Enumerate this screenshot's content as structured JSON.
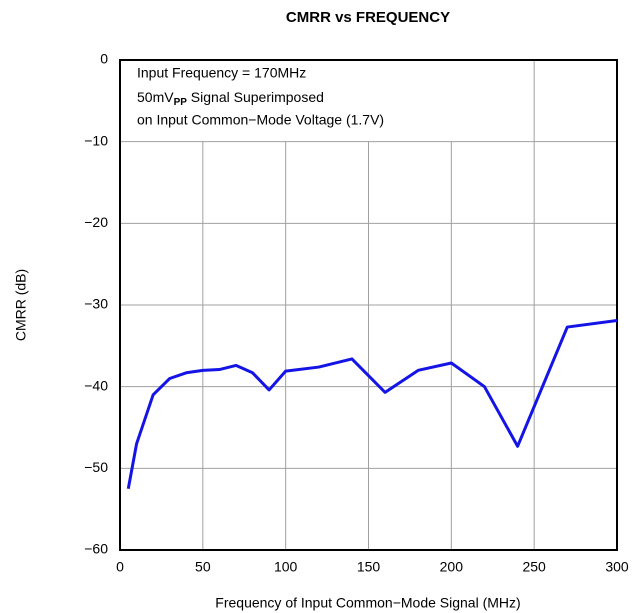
{
  "chart_data": {
    "type": "line",
    "title": "CMRR vs FREQUENCY",
    "xlabel": "Frequency of Input Common−Mode Signal (MHz)",
    "ylabel": "CMRR (dB)",
    "annotation": {
      "line1": "Input Frequency = 170MHz",
      "line2": {
        "main": "50mV",
        "sub": "PP",
        "rest": " Signal Superimposed"
      },
      "line3": "on Input Common−Mode Voltage (1.7V)"
    },
    "x": [
      5,
      10,
      20,
      30,
      40,
      50,
      60,
      70,
      80,
      90,
      100,
      120,
      140,
      160,
      180,
      200,
      220,
      240,
      270,
      300
    ],
    "series": [
      {
        "color": "#1414e6",
        "values": [
          -52.5,
          -47,
          -41,
          -39,
          -38.3,
          -38,
          -37.9,
          -37.4,
          -38.3,
          -40.4,
          -38.1,
          -37.6,
          -36.6,
          -40.7,
          -38,
          -37.1,
          -40,
          -47.3,
          -32.7,
          -31.9
        ]
      }
    ],
    "xlim": [
      0,
      300
    ],
    "xticks": [
      0,
      50,
      100,
      150,
      200,
      250,
      300
    ],
    "ylim": [
      -60,
      0
    ],
    "yticks": [
      0,
      {
        "value": -10,
        "label": "−10"
      },
      {
        "value": -20,
        "label": "−20"
      },
      {
        "value": -30,
        "label": "−30"
      },
      {
        "value": -40,
        "label": "−40"
      },
      {
        "value": -50,
        "label": "−50"
      },
      {
        "value": -60,
        "label": "−60"
      }
    ],
    "grid": true
  }
}
